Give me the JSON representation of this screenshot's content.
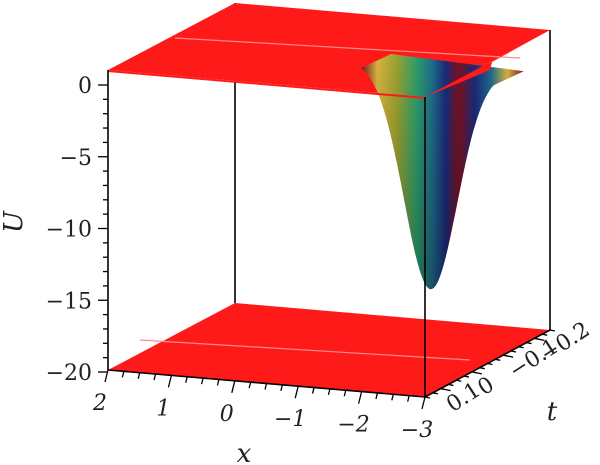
{
  "chart_data": {
    "type": "surface3d",
    "title": "",
    "xlabel": "x",
    "ylabel": "t",
    "zlabel": "U",
    "x_ticks": [
      "2",
      "1",
      "0",
      "−1",
      "−2",
      "−3"
    ],
    "t_ticks": [
      "0.1",
      "0",
      "−0.1",
      "−0.2"
    ],
    "z_ticks": [
      "0",
      "−5",
      "−10",
      "−15",
      "−20"
    ],
    "xlim": [
      -3,
      2
    ],
    "tlim": [
      -0.25,
      0.15
    ],
    "zlim": [
      -20,
      0
    ],
    "surface": {
      "shape": "gaussian-well",
      "plateau_value": 0,
      "minimum_value": -15.5,
      "minimum_at_x": -2,
      "cap_color": "#ff1a1a",
      "colormap": [
        "#1a2a7a",
        "#1e6b8a",
        "#2e9e6a",
        "#9aa030",
        "#d6b440",
        "#7a1020"
      ]
    },
    "floor_color": "#ff1a1a"
  }
}
